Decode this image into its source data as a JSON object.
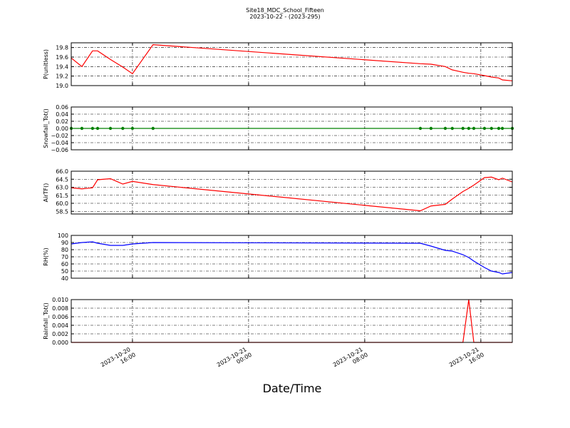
{
  "title": "Site18_MDC_School_Fifteen",
  "subtitle": "2023-10-22 - (2023-295)",
  "x_label": "Date/Time",
  "xlim": [
    "2023-10-20 11:47",
    "2023-10-21 18:10"
  ],
  "xticks": [
    "2023-10-20 16:00",
    "2023-10-21 00:00",
    "2023-10-21 08:00",
    "2023-10-21 16:00"
  ],
  "x": [
    "2023-10-20 11:47",
    "2023-10-20 12:31",
    "2023-10-20 13:15",
    "2023-10-20 13:36",
    "2023-10-20 14:29",
    "2023-10-20 15:20",
    "2023-10-20 16:00",
    "2023-10-20 17:25",
    "2023-10-21 11:50",
    "2023-10-21 12:34",
    "2023-10-21 13:33",
    "2023-10-21 14:02",
    "2023-10-21 14:46",
    "2023-10-21 15:10",
    "2023-10-21 15:31",
    "2023-10-21 16:15",
    "2023-10-21 16:44",
    "2023-10-21 17:14",
    "2023-10-21 17:29",
    "2023-10-21 18:10"
  ],
  "chart_data": [
    {
      "type": "line",
      "y_label": "P(unitless)",
      "color": "#ff0000",
      "grid": true,
      "ylim": [
        19.0,
        19.9
      ],
      "yticks": [
        {
          "value": 19.0,
          "label": "19.0"
        },
        {
          "value": 19.2,
          "label": "19.2"
        },
        {
          "value": 19.4,
          "label": "19.4"
        },
        {
          "value": 19.6,
          "label": "19.6"
        },
        {
          "value": 19.8,
          "label": "19.8"
        }
      ],
      "values": [
        19.58,
        19.4,
        19.73,
        19.73,
        19.55,
        19.39,
        19.25,
        19.86,
        19.46,
        19.45,
        19.4,
        19.33,
        19.28,
        19.26,
        19.25,
        19.21,
        19.18,
        19.16,
        19.12,
        19.1
      ]
    },
    {
      "type": "line",
      "y_label": "Snowfall_Tot()",
      "color": "#008000",
      "marker": true,
      "grid": true,
      "ylim": [
        -0.06,
        0.06
      ],
      "yticks": [
        {
          "value": -0.06,
          "label": "−0.06"
        },
        {
          "value": -0.04,
          "label": "−0.04"
        },
        {
          "value": -0.02,
          "label": "−0.02"
        },
        {
          "value": 0,
          "label": "0.00"
        },
        {
          "value": 0.02,
          "label": "0.02"
        },
        {
          "value": 0.04,
          "label": "0.04"
        },
        {
          "value": 0.06,
          "label": "0.06"
        }
      ],
      "values": [
        0,
        0,
        0,
        0,
        0,
        0,
        0,
        0,
        0,
        0,
        0,
        0,
        0,
        0,
        0,
        0,
        0,
        0,
        0,
        0
      ]
    },
    {
      "type": "line",
      "y_label": "AirTF()",
      "color": "#ff0000",
      "grid": true,
      "ylim": [
        58,
        66
      ],
      "yticks": [
        58.5,
        {
          "value": 60,
          "label": "60.0"
        },
        61.5,
        {
          "value": 63,
          "label": "63.0"
        },
        64.5,
        {
          "value": 66,
          "label": "66.0"
        }
      ],
      "values": [
        62.9,
        62.7,
        62.9,
        64.4,
        64.6,
        63.6,
        64.1,
        63.5,
        58.6,
        59.5,
        59.8,
        60.8,
        62.2,
        62.8,
        63.4,
        64.8,
        64.9,
        64.4,
        64.7,
        64.0
      ]
    },
    {
      "type": "line",
      "y_label": "RH(%)",
      "color": "#0000ff",
      "grid": true,
      "ylim": [
        40,
        100
      ],
      "yticks": [
        40,
        50,
        60,
        70,
        80,
        90,
        100
      ],
      "values": [
        88,
        90,
        91,
        89,
        86,
        86,
        88,
        90,
        89,
        85,
        79,
        78,
        73,
        69,
        64,
        55,
        50,
        48,
        46,
        48
      ]
    },
    {
      "type": "line",
      "y_label": "Rainfall_Tot()",
      "color": "#ff0000",
      "grid": true,
      "ylim": [
        0,
        0.01
      ],
      "yticks": [
        {
          "value": 0,
          "label": "0.000"
        },
        {
          "value": 0.002,
          "label": "0.002"
        },
        {
          "value": 0.004,
          "label": "0.004"
        },
        {
          "value": 0.006,
          "label": "0.006"
        },
        {
          "value": 0.008,
          "label": "0.008"
        },
        {
          "value": 0.01,
          "label": "0.010"
        }
      ],
      "values": [
        0,
        0,
        0,
        0,
        0,
        0,
        0,
        0,
        0,
        0,
        0,
        0,
        0,
        0.01,
        0,
        0,
        0,
        0,
        0,
        0
      ]
    }
  ]
}
